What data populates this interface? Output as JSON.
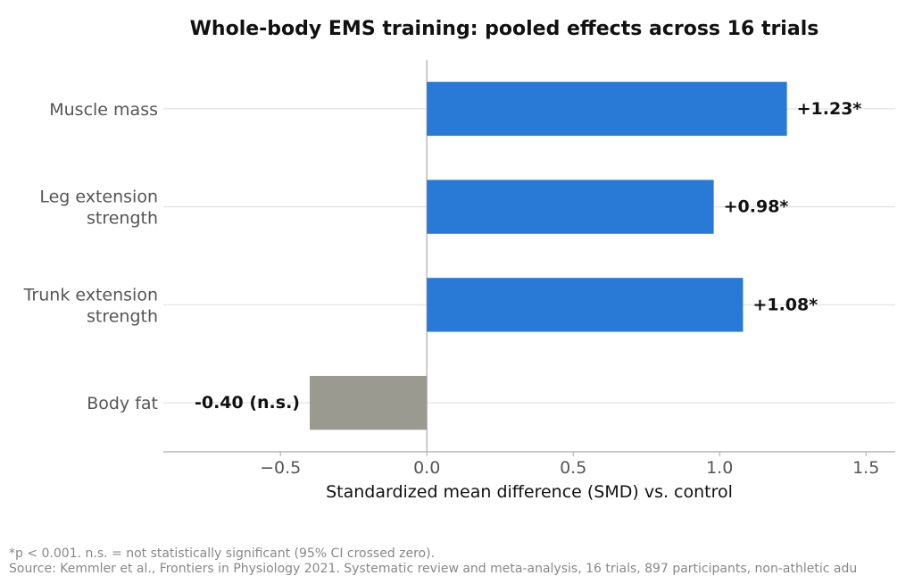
{
  "chart_data": {
    "type": "bar",
    "orientation": "horizontal",
    "title": "Whole-body EMS training: pooled effects across 16 trials",
    "xlabel": "Standardized mean difference (SMD) vs. control",
    "ylabel": "",
    "xlim": [
      -0.9,
      1.6
    ],
    "xticks": [
      -0.5,
      0.0,
      0.5,
      1.0,
      1.5
    ],
    "xtick_labels": [
      "−0.5",
      "0.0",
      "0.5",
      "1.0",
      "1.5"
    ],
    "grid": "horizontal",
    "categories": [
      [
        "Muscle mass"
      ],
      [
        "Leg extension",
        "strength"
      ],
      [
        "Trunk extension",
        "strength"
      ],
      [
        "Body fat"
      ]
    ],
    "values": [
      1.23,
      0.98,
      1.08,
      -0.4
    ],
    "data_labels": [
      "+1.23*",
      "+0.98*",
      "+1.08*",
      "-0.40 (n.s.)"
    ],
    "colors": {
      "significant": "#2979d6",
      "not_significant": "#9a9a90",
      "zero_line": "#bbbbbb",
      "grid": "#e3e3e3"
    },
    "bar_colors": [
      "significant",
      "significant",
      "significant",
      "not_significant"
    ]
  },
  "footnotes": {
    "line1": "*p < 0.001. n.s. = not statistically significant (95% CI crossed zero).",
    "line2": "Source: Kemmler et al., Frontiers in Physiology 2021. Systematic review and meta-analysis, 16 trials, 897 participants, non-athletic adu"
  }
}
